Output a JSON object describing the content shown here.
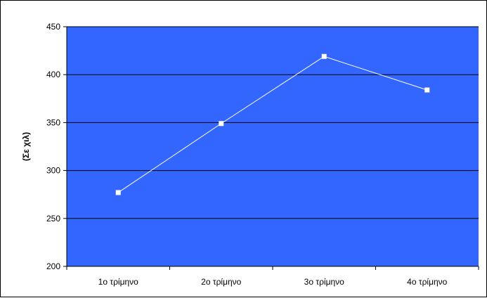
{
  "chart_data": {
    "type": "line",
    "title": "",
    "xlabel": "",
    "ylabel": "(Σε χιλ)",
    "categories": [
      "1ο τρίμηνο",
      "2ο τρίμηνο",
      "3ο τρίμηνο",
      "4ο τρίμηνο"
    ],
    "series": [
      {
        "values": [
          277,
          349,
          419,
          384
        ]
      }
    ],
    "ylim": [
      200,
      450
    ],
    "yticks": [
      200,
      250,
      300,
      350,
      400,
      450
    ],
    "grid": true,
    "legend": "none",
    "colors": {
      "plot_background": "#3366ff",
      "line": "#ffffff",
      "gridline": "#000000",
      "chart_background": "#ffffff"
    }
  }
}
